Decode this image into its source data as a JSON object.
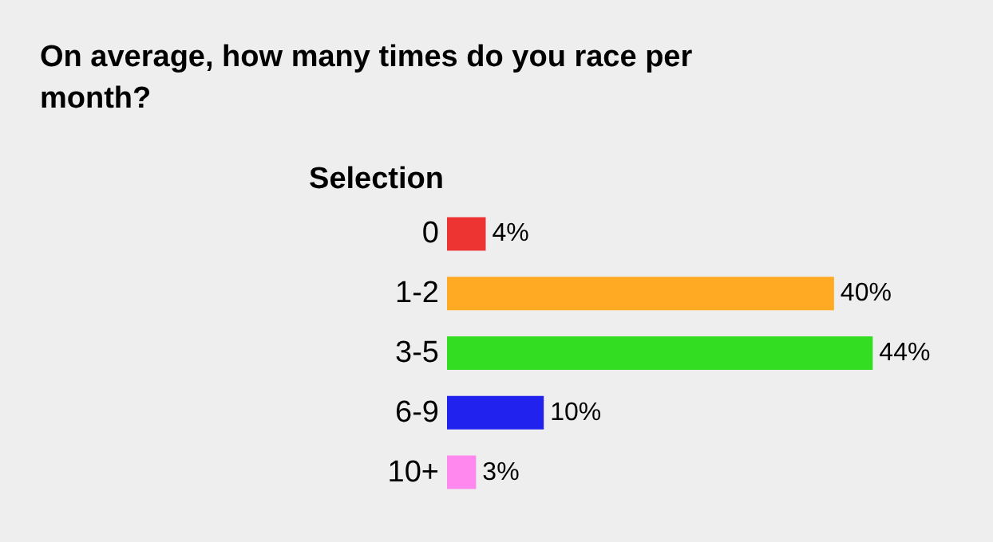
{
  "chart_data": {
    "type": "bar",
    "orientation": "horizontal",
    "title": "On average, how many times do you race per month?",
    "ylabel": "Selection",
    "categories": [
      "0",
      "1-2",
      "3-5",
      "6-9",
      "10+"
    ],
    "values": [
      4,
      40,
      44,
      10,
      3
    ],
    "colors": [
      "#ee3333",
      "#ffaa22",
      "#33dd22",
      "#2222ee",
      "#ff88ee"
    ],
    "value_labels": [
      "4%",
      "40%",
      "44%",
      "10%",
      "3%"
    ]
  }
}
